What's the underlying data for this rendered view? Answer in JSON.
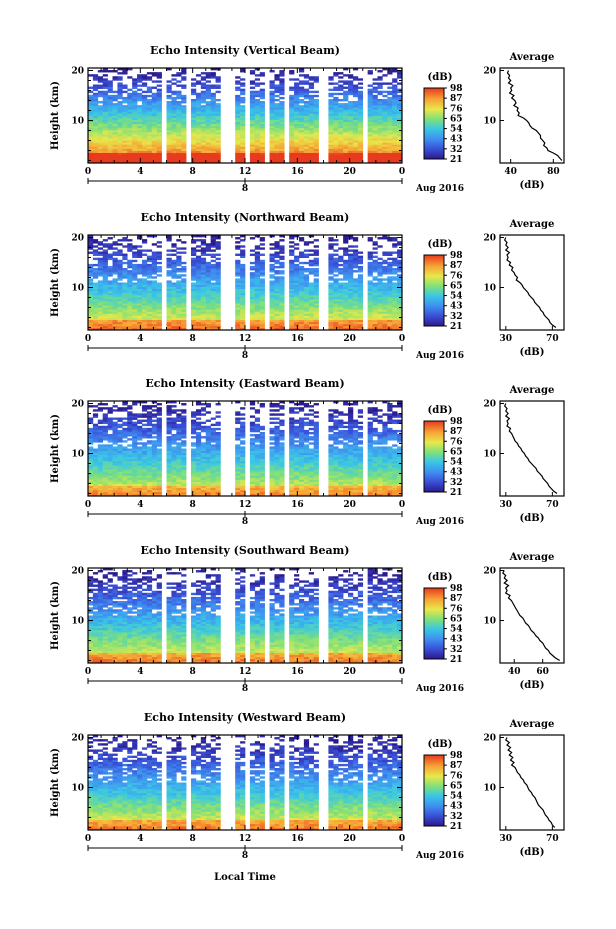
{
  "figure": {
    "xlabel_bottom": "Local Time",
    "date_label": "Aug 2016",
    "date_tick": "8",
    "colorbar_unit": "(dB)",
    "avg_title": "Average",
    "avg_xlabel": "(dB)",
    "ylabel": "Height (km)"
  },
  "chart_data": [
    {
      "type": "heatmap",
      "title": "Echo Intensity (Vertical Beam)",
      "xlabel": "Local Time",
      "ylabel": "Height (km)",
      "x_ticks": [
        "0",
        "4",
        "8",
        "12",
        "16",
        "20",
        "0"
      ],
      "y_ticks": [
        "20",
        "10"
      ],
      "xlim": [
        0,
        24
      ],
      "ylim": [
        1.5,
        20.5
      ],
      "colorbar_ticks": [
        "98",
        "87",
        "76",
        "65",
        "54",
        "43",
        "32",
        "21"
      ],
      "data_gaps_hours": [
        [
          5.6,
          6.0
        ],
        [
          7.4,
          7.9
        ],
        [
          10.2,
          11.3
        ],
        [
          12.1,
          12.3
        ],
        [
          13.6,
          13.8
        ],
        [
          15.1,
          15.3
        ],
        [
          16.4,
          16.6
        ],
        [
          17.5,
          18.5
        ],
        [
          21.0,
          21.2
        ]
      ],
      "average_profile": {
        "title": "Average",
        "xlabel": "(dB)",
        "x_ticks": [
          "40",
          "80"
        ],
        "y_ticks": [
          "20",
          "10"
        ],
        "xlim": [
          30,
          90
        ],
        "height_km": [
          20,
          19.5,
          19,
          18.5,
          18,
          17.5,
          17,
          16.5,
          16,
          15.5,
          15,
          14.5,
          14,
          13.5,
          13,
          12.5,
          12,
          11.5,
          11,
          10.5,
          10,
          9.5,
          9,
          8.5,
          8,
          7.5,
          7,
          6.5,
          6,
          5.5,
          5,
          4.5,
          4,
          3.5,
          3,
          2.5,
          2
        ],
        "db": [
          38,
          37,
          39,
          38,
          40,
          38,
          42,
          40,
          41,
          39,
          43,
          41,
          44,
          45,
          43,
          47,
          46,
          48,
          47,
          52,
          55,
          57,
          58,
          60,
          64,
          66,
          68,
          68,
          70,
          72,
          71,
          74,
          75,
          80,
          84,
          86,
          88
        ]
      }
    },
    {
      "type": "heatmap",
      "title": "Echo Intensity (Northward Beam)",
      "xlabel": "Local Time",
      "ylabel": "Height (km)",
      "x_ticks": [
        "0",
        "4",
        "8",
        "12",
        "16",
        "20",
        "0"
      ],
      "y_ticks": [
        "20",
        "10"
      ],
      "xlim": [
        0,
        24
      ],
      "ylim": [
        1.5,
        20.5
      ],
      "colorbar_ticks": [
        "98",
        "87",
        "76",
        "65",
        "54",
        "43",
        "32",
        "21"
      ],
      "data_gaps_hours": [
        [
          5.6,
          6.0
        ],
        [
          7.4,
          7.9
        ],
        [
          10.2,
          11.3
        ],
        [
          12.1,
          12.3
        ],
        [
          13.6,
          13.8
        ],
        [
          15.1,
          15.3
        ],
        [
          16.4,
          16.6
        ],
        [
          17.5,
          18.5
        ],
        [
          21.0,
          21.2
        ]
      ],
      "average_profile": {
        "title": "Average",
        "xlabel": "(dB)",
        "x_ticks": [
          "30",
          "70"
        ],
        "y_ticks": [
          "20",
          "10"
        ],
        "xlim": [
          25,
          80
        ],
        "height_km": [
          20,
          19.5,
          19,
          18.5,
          18,
          17.5,
          17,
          16.5,
          16,
          15.5,
          15,
          14.5,
          14,
          13.5,
          13,
          12.5,
          12,
          11.5,
          11,
          10.5,
          10,
          9.5,
          9,
          8.5,
          8,
          7.5,
          7,
          6.5,
          6,
          5.5,
          5,
          4.5,
          4,
          3.5,
          3,
          2.5,
          2
        ],
        "db": [
          30,
          29,
          31,
          30,
          32,
          30,
          33,
          31,
          32,
          31,
          34,
          33,
          36,
          35,
          37,
          38,
          40,
          39,
          42,
          44,
          45,
          47,
          49,
          50,
          52,
          54,
          55,
          57,
          59,
          60,
          62,
          63,
          65,
          67,
          68,
          70,
          73
        ]
      }
    },
    {
      "type": "heatmap",
      "title": "Echo Intensity (Eastward Beam)",
      "xlabel": "Local Time",
      "ylabel": "Height (km)",
      "x_ticks": [
        "0",
        "4",
        "8",
        "12",
        "16",
        "20",
        "0"
      ],
      "y_ticks": [
        "20",
        "10"
      ],
      "xlim": [
        0,
        24
      ],
      "ylim": [
        1.5,
        20.5
      ],
      "colorbar_ticks": [
        "98",
        "87",
        "76",
        "65",
        "54",
        "43",
        "32",
        "21"
      ],
      "data_gaps_hours": [
        [
          5.6,
          6.0
        ],
        [
          7.4,
          7.9
        ],
        [
          10.2,
          11.3
        ],
        [
          12.1,
          12.3
        ],
        [
          13.6,
          13.8
        ],
        [
          15.1,
          15.3
        ],
        [
          16.4,
          16.6
        ],
        [
          17.5,
          18.5
        ],
        [
          21.0,
          21.2
        ]
      ],
      "average_profile": {
        "title": "Average",
        "xlabel": "(dB)",
        "x_ticks": [
          "30",
          "70"
        ],
        "y_ticks": [
          "20",
          "10"
        ],
        "xlim": [
          25,
          80
        ],
        "height_km": [
          20,
          19.5,
          19,
          18.5,
          18,
          17.5,
          17,
          16.5,
          16,
          15.5,
          15,
          14.5,
          14,
          13.5,
          13,
          12.5,
          12,
          11.5,
          11,
          10.5,
          10,
          9.5,
          9,
          8.5,
          8,
          7.5,
          7,
          6.5,
          6,
          5.5,
          5,
          4.5,
          4,
          3.5,
          3,
          2.5,
          2
        ],
        "db": [
          30,
          29,
          31,
          30,
          32,
          30,
          33,
          31,
          32,
          31,
          34,
          33,
          35,
          36,
          37,
          38,
          40,
          41,
          43,
          44,
          46,
          47,
          49,
          50,
          52,
          54,
          56,
          57,
          59,
          61,
          62,
          64,
          66,
          67,
          69,
          71,
          74
        ]
      }
    },
    {
      "type": "heatmap",
      "title": "Echo Intensity (Southward Beam)",
      "xlabel": "Local Time",
      "ylabel": "Height (km)",
      "x_ticks": [
        "0",
        "4",
        "8",
        "12",
        "16",
        "20",
        "0"
      ],
      "y_ticks": [
        "20",
        "10"
      ],
      "xlim": [
        0,
        24
      ],
      "ylim": [
        1.5,
        20.5
      ],
      "colorbar_ticks": [
        "98",
        "87",
        "76",
        "65",
        "54",
        "43",
        "32",
        "21"
      ],
      "data_gaps_hours": [
        [
          5.6,
          6.0
        ],
        [
          7.4,
          7.9
        ],
        [
          10.2,
          11.3
        ],
        [
          12.1,
          12.3
        ],
        [
          13.6,
          13.8
        ],
        [
          15.1,
          15.3
        ],
        [
          16.4,
          16.6
        ],
        [
          17.5,
          18.5
        ],
        [
          21.0,
          21.2
        ]
      ],
      "average_profile": {
        "title": "Average",
        "xlabel": "(dB)",
        "x_ticks": [
          "40",
          "60"
        ],
        "y_ticks": [
          "20",
          "10"
        ],
        "xlim": [
          30,
          75
        ],
        "height_km": [
          20,
          19.5,
          19,
          18.5,
          18,
          17.5,
          17,
          16.5,
          16,
          15.5,
          15,
          14.5,
          14,
          13.5,
          13,
          12.5,
          12,
          11.5,
          11,
          10.5,
          10,
          9.5,
          9,
          8.5,
          8,
          7.5,
          7,
          6.5,
          6,
          5.5,
          5,
          4.5,
          4,
          3.5,
          3,
          2.5,
          2
        ],
        "db": [
          33,
          32,
          34,
          33,
          35,
          33,
          36,
          34,
          35,
          34,
          37,
          36,
          38,
          39,
          40,
          41,
          42,
          43,
          44,
          46,
          47,
          48,
          50,
          51,
          52,
          54,
          55,
          57,
          58,
          60,
          61,
          62,
          64,
          65,
          67,
          69,
          72
        ]
      }
    },
    {
      "type": "heatmap",
      "title": "Echo Intensity (Westward Beam)",
      "xlabel": "Local Time",
      "ylabel": "Height (km)",
      "x_ticks": [
        "0",
        "4",
        "8",
        "12",
        "16",
        "20",
        "0"
      ],
      "y_ticks": [
        "20",
        "10"
      ],
      "xlim": [
        0,
        24
      ],
      "ylim": [
        1.5,
        20.5
      ],
      "colorbar_ticks": [
        "98",
        "87",
        "76",
        "65",
        "54",
        "43",
        "32",
        "21"
      ],
      "data_gaps_hours": [
        [
          5.6,
          6.0
        ],
        [
          7.4,
          7.9
        ],
        [
          10.2,
          11.3
        ],
        [
          12.1,
          12.3
        ],
        [
          13.6,
          13.8
        ],
        [
          15.1,
          15.3
        ],
        [
          16.4,
          16.6
        ],
        [
          17.5,
          18.5
        ],
        [
          21.0,
          21.2
        ]
      ],
      "average_profile": {
        "title": "Average",
        "xlabel": "(dB)",
        "x_ticks": [
          "30",
          "70"
        ],
        "y_ticks": [
          "20",
          "10"
        ],
        "xlim": [
          25,
          80
        ],
        "height_km": [
          20,
          19.5,
          19,
          18.5,
          18,
          17.5,
          17,
          16.5,
          16,
          15.5,
          15,
          14.5,
          14,
          13.5,
          13,
          12.5,
          12,
          11.5,
          11,
          10.5,
          10,
          9.5,
          9,
          8.5,
          8,
          7.5,
          7,
          6.5,
          6,
          5.5,
          5,
          4.5,
          4,
          3.5,
          3,
          2.5,
          2
        ],
        "db": [
          31,
          30,
          33,
          31,
          34,
          32,
          35,
          33,
          36,
          34,
          37,
          35,
          38,
          39,
          40,
          42,
          43,
          45,
          46,
          48,
          49,
          50,
          52,
          53,
          55,
          56,
          57,
          58,
          60,
          62,
          63,
          64,
          66,
          67,
          69,
          70,
          72
        ]
      }
    }
  ]
}
